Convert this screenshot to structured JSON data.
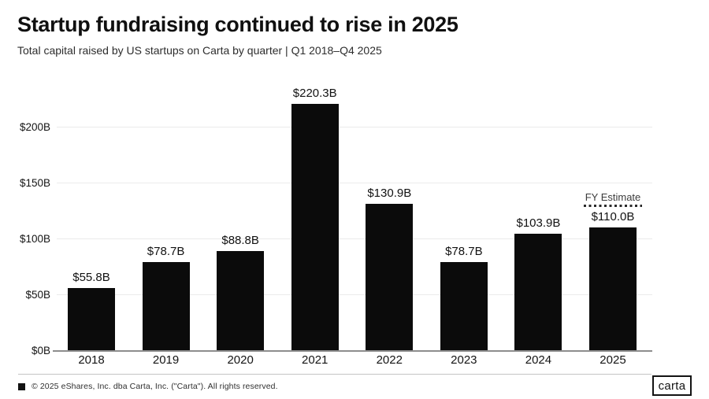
{
  "header": {
    "title": "Startup fundraising continued to rise in 2025",
    "subtitle": "Total capital raised by US startups on Carta by quarter | Q1 2018–Q4 2025"
  },
  "chart_data": {
    "type": "bar",
    "title": "Startup fundraising continued to rise in 2025",
    "subtitle": "Total capital raised by US startups on Carta by quarter | Q1 2018–Q4 2025",
    "xlabel": "",
    "ylabel": "",
    "categories": [
      "2018",
      "2019",
      "2020",
      "2021",
      "2022",
      "2023",
      "2024",
      "2025"
    ],
    "values": [
      55.8,
      78.7,
      88.8,
      220.3,
      130.9,
      78.7,
      103.9,
      110.0
    ],
    "bar_labels": [
      "$55.8B",
      "$78.7B",
      "$88.8B",
      "$220.3B",
      "$130.9B",
      "$78.7B",
      "$103.9B",
      "$110.0B"
    ],
    "y_ticks": [
      {
        "label": "$0B",
        "value": 0
      },
      {
        "label": "$50B",
        "value": 50
      },
      {
        "label": "$100B",
        "value": 100
      },
      {
        "label": "$150B",
        "value": 150
      },
      {
        "label": "$200B",
        "value": 200
      }
    ],
    "ylim": [
      0,
      230
    ],
    "grid": "horizontal",
    "legend": "none",
    "bar_color": "#0b0b0b",
    "annotation": {
      "label": "FY Estimate",
      "category": "2025",
      "style": "dashed-line-above-bar"
    }
  },
  "footer": {
    "copyright": "© 2025 eShares, Inc. dba Carta, Inc. (\"Carta\"). All rights reserved.",
    "bullet_icon": "black-square",
    "logo_text": "carta"
  }
}
